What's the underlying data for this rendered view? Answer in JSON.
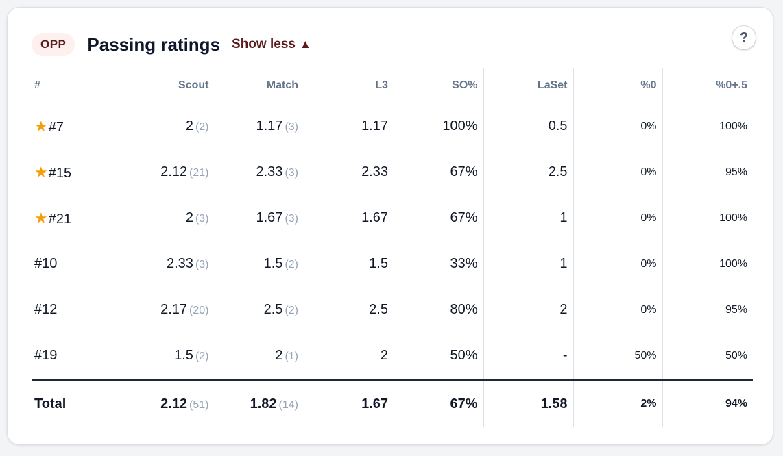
{
  "header": {
    "badge": "OPP",
    "title": "Passing ratings",
    "toggle_label": "Show less",
    "toggle_icon": "▲",
    "help_label": "?"
  },
  "table": {
    "columns": [
      "#",
      "Scout",
      "Match",
      "L3",
      "SO%",
      "LaSet",
      "%0",
      "%0+.5"
    ],
    "rows": [
      {
        "player": "#7",
        "starred": true,
        "scout": "2",
        "scout_n": "(2)",
        "match": "1.17",
        "match_n": "(3)",
        "l3": "1.17",
        "so": "100%",
        "laset": "0.5",
        "p0": "0%",
        "p05": "100%"
      },
      {
        "player": "#15",
        "starred": true,
        "scout": "2.12",
        "scout_n": "(21)",
        "match": "2.33",
        "match_n": "(3)",
        "l3": "2.33",
        "so": "67%",
        "laset": "2.5",
        "p0": "0%",
        "p05": "95%"
      },
      {
        "player": "#21",
        "starred": true,
        "scout": "2",
        "scout_n": "(3)",
        "match": "1.67",
        "match_n": "(3)",
        "l3": "1.67",
        "so": "67%",
        "laset": "1",
        "p0": "0%",
        "p05": "100%"
      },
      {
        "player": "#10",
        "starred": false,
        "scout": "2.33",
        "scout_n": "(3)",
        "match": "1.5",
        "match_n": "(2)",
        "l3": "1.5",
        "so": "33%",
        "laset": "1",
        "p0": "0%",
        "p05": "100%"
      },
      {
        "player": "#12",
        "starred": false,
        "scout": "2.17",
        "scout_n": "(20)",
        "match": "2.5",
        "match_n": "(2)",
        "l3": "2.5",
        "so": "80%",
        "laset": "2",
        "p0": "0%",
        "p05": "95%"
      },
      {
        "player": "#19",
        "starred": false,
        "scout": "1.5",
        "scout_n": "(2)",
        "match": "2",
        "match_n": "(1)",
        "l3": "2",
        "so": "50%",
        "laset": "-",
        "p0": "50%",
        "p05": "50%"
      }
    ],
    "total": {
      "label": "Total",
      "scout": "2.12",
      "scout_n": "(51)",
      "match": "1.82",
      "match_n": "(14)",
      "l3": "1.67",
      "so": "67%",
      "laset": "1.58",
      "p0": "2%",
      "p05": "94%"
    }
  },
  "icons": {
    "star": "star-icon",
    "toggle": "triangle-up-icon",
    "help": "question-mark-icon"
  },
  "colors": {
    "star": "#f59e0b",
    "accent": "#5b1a1a",
    "badge_bg": "#fdf0ef"
  }
}
